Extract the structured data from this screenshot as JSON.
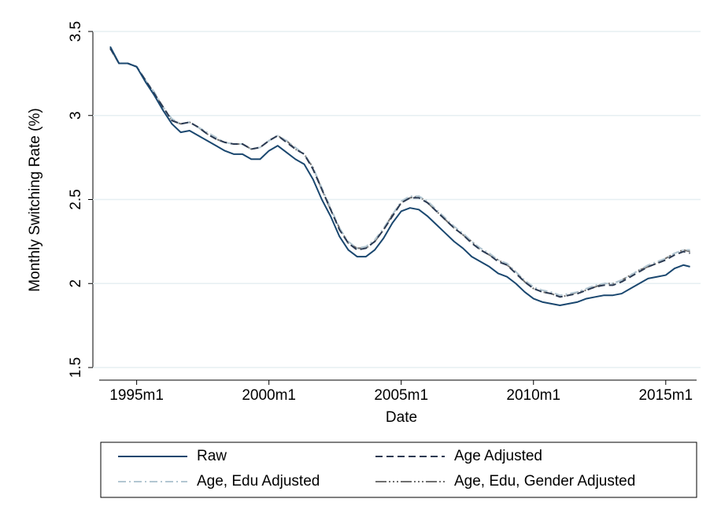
{
  "chart_data": {
    "type": "line",
    "x_label": "Date",
    "y_label": "Monthly Switching Rate (%)",
    "x": [
      "1994m1",
      "1994m5",
      "1994m9",
      "1995m1",
      "1995m5",
      "1995m9",
      "1996m1",
      "1996m5",
      "1996m9",
      "1997m1",
      "1997m5",
      "1997m9",
      "1998m1",
      "1998m5",
      "1998m9",
      "1999m1",
      "1999m5",
      "1999m9",
      "2000m1",
      "2000m5",
      "2000m9",
      "2001m1",
      "2001m5",
      "2001m9",
      "2002m1",
      "2002m5",
      "2002m9",
      "2003m1",
      "2003m5",
      "2003m9",
      "2004m1",
      "2004m5",
      "2004m9",
      "2005m1",
      "2005m5",
      "2005m9",
      "2006m1",
      "2006m5",
      "2006m9",
      "2007m1",
      "2007m5",
      "2007m9",
      "2008m1",
      "2008m5",
      "2008m9",
      "2009m1",
      "2009m5",
      "2009m9",
      "2010m1",
      "2010m5",
      "2010m9",
      "2011m1",
      "2011m5",
      "2011m9",
      "2012m1",
      "2012m5",
      "2012m9",
      "2013m1",
      "2013m5",
      "2013m9",
      "2014m1",
      "2014m5",
      "2014m9",
      "2015m1",
      "2015m5",
      "2015m9",
      "2015m12"
    ],
    "series": [
      {
        "name": "Raw",
        "color": "#1a476f",
        "dash": "",
        "values": [
          3.41,
          3.31,
          3.31,
          3.29,
          3.2,
          3.12,
          3.03,
          2.95,
          2.9,
          2.91,
          2.88,
          2.85,
          2.82,
          2.79,
          2.77,
          2.77,
          2.74,
          2.74,
          2.79,
          2.82,
          2.78,
          2.74,
          2.71,
          2.62,
          2.5,
          2.4,
          2.28,
          2.2,
          2.16,
          2.16,
          2.2,
          2.27,
          2.36,
          2.43,
          2.45,
          2.44,
          2.4,
          2.35,
          2.3,
          2.25,
          2.21,
          2.16,
          2.13,
          2.1,
          2.06,
          2.04,
          2.0,
          1.95,
          1.91,
          1.89,
          1.88,
          1.87,
          1.88,
          1.89,
          1.91,
          1.92,
          1.93,
          1.93,
          1.94,
          1.97,
          2.0,
          2.03,
          2.04,
          2.05,
          2.09,
          2.11,
          2.1
        ]
      },
      {
        "name": "Age Adjusted",
        "color": "#2b3a52",
        "dash": "9 5",
        "values": [
          3.4,
          3.31,
          3.31,
          3.29,
          3.21,
          3.13,
          3.05,
          2.97,
          2.95,
          2.96,
          2.93,
          2.89,
          2.86,
          2.84,
          2.83,
          2.83,
          2.8,
          2.81,
          2.85,
          2.88,
          2.84,
          2.8,
          2.77,
          2.68,
          2.56,
          2.44,
          2.32,
          2.24,
          2.2,
          2.21,
          2.25,
          2.32,
          2.4,
          2.48,
          2.51,
          2.51,
          2.48,
          2.43,
          2.38,
          2.33,
          2.29,
          2.24,
          2.2,
          2.17,
          2.13,
          2.11,
          2.06,
          2.01,
          1.97,
          1.95,
          1.94,
          1.92,
          1.93,
          1.94,
          1.96,
          1.98,
          1.99,
          1.99,
          2.01,
          2.04,
          2.07,
          2.1,
          2.12,
          2.14,
          2.17,
          2.19,
          2.18
        ]
      },
      {
        "name": "Age, Edu Adjusted",
        "color": "#b3c7d2",
        "dash": "10 4 2 4",
        "values": [
          3.4,
          3.31,
          3.31,
          3.29,
          3.21,
          3.14,
          3.05,
          2.98,
          2.95,
          2.96,
          2.93,
          2.9,
          2.87,
          2.84,
          2.83,
          2.83,
          2.8,
          2.81,
          2.85,
          2.88,
          2.85,
          2.81,
          2.77,
          2.69,
          2.57,
          2.45,
          2.33,
          2.25,
          2.21,
          2.22,
          2.26,
          2.33,
          2.41,
          2.49,
          2.52,
          2.52,
          2.49,
          2.44,
          2.39,
          2.34,
          2.3,
          2.25,
          2.21,
          2.18,
          2.14,
          2.12,
          2.07,
          2.02,
          1.98,
          1.96,
          1.95,
          1.93,
          1.94,
          1.95,
          1.97,
          1.99,
          2.0,
          2.0,
          2.02,
          2.05,
          2.08,
          2.11,
          2.13,
          2.15,
          2.18,
          2.2,
          2.2
        ]
      },
      {
        "name": "Age, Edu, Gender Adjusted",
        "color": "#6f6f6f",
        "dash": "14 3 2 3 2 3 2 3",
        "values": [
          3.4,
          3.31,
          3.31,
          3.29,
          3.21,
          3.13,
          3.05,
          2.97,
          2.95,
          2.96,
          2.93,
          2.89,
          2.86,
          2.84,
          2.83,
          2.83,
          2.8,
          2.81,
          2.85,
          2.88,
          2.85,
          2.8,
          2.77,
          2.69,
          2.56,
          2.44,
          2.33,
          2.24,
          2.21,
          2.21,
          2.25,
          2.32,
          2.41,
          2.48,
          2.51,
          2.52,
          2.48,
          2.43,
          2.38,
          2.33,
          2.29,
          2.25,
          2.2,
          2.17,
          2.14,
          2.11,
          2.07,
          2.01,
          1.97,
          1.95,
          1.94,
          1.92,
          1.93,
          1.95,
          1.96,
          1.98,
          2.0,
          2.0,
          2.02,
          2.05,
          2.08,
          2.1,
          2.12,
          2.15,
          2.18,
          2.2,
          2.19
        ]
      }
    ],
    "xlim": [
      "1993m8",
      "2016m3"
    ],
    "xticks": [
      "1995m1",
      "2000m1",
      "2005m1",
      "2010m1",
      "2015m1"
    ],
    "ylim": [
      1.5,
      3.5
    ],
    "yticks": [
      1.5,
      2,
      2.5,
      3,
      3.5
    ],
    "grid": true
  }
}
